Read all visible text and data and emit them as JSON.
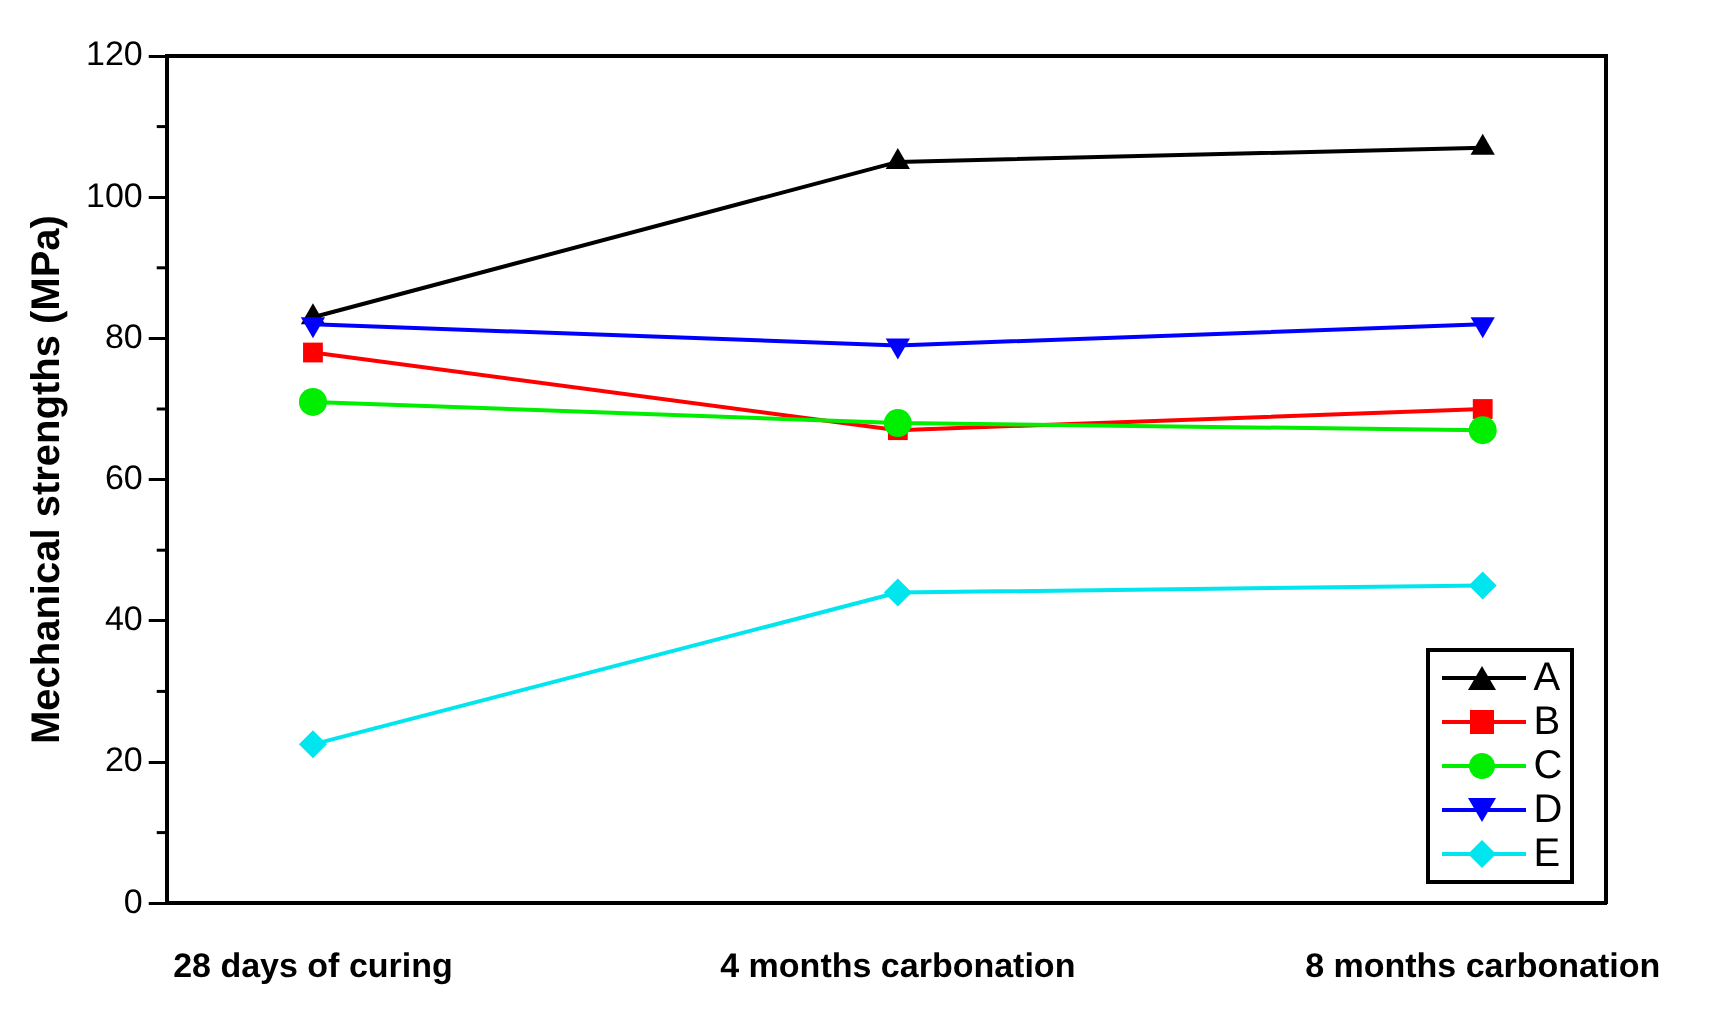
{
  "chart_data": {
    "type": "line",
    "ylabel": "Mechanical strengths (MPa)",
    "categories": [
      "28 days of curing",
      "4 months carbonation",
      "8 months carbonation"
    ],
    "series": [
      {
        "name": "A",
        "color": "#000000",
        "marker": "triangle",
        "values": [
          83,
          105,
          107
        ]
      },
      {
        "name": "B",
        "color": "#ff0000",
        "marker": "square",
        "values": [
          78,
          67,
          70
        ]
      },
      {
        "name": "C",
        "color": "#00ee00",
        "marker": "circle",
        "values": [
          71,
          68,
          67
        ]
      },
      {
        "name": "D",
        "color": "#0000ff",
        "marker": "triangle-down",
        "values": [
          82,
          79,
          82
        ]
      },
      {
        "name": "E",
        "color": "#00e5ee",
        "marker": "diamond",
        "values": [
          22.5,
          44,
          45
        ]
      }
    ],
    "ylim": [
      0,
      120
    ],
    "yticks": [
      0,
      20,
      40,
      60,
      80,
      100,
      120
    ],
    "grid": false,
    "legend": "bottom right",
    "line_style": "solid"
  }
}
